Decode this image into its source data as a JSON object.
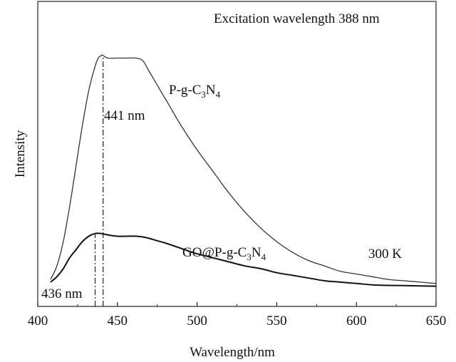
{
  "chart_data": {
    "type": "line",
    "title": "",
    "xlabel": "Wavelength/nm",
    "ylabel": "Intensity",
    "xlim": [
      400,
      650
    ],
    "ylim": [
      0,
      1
    ],
    "x_ticks": [
      "400",
      "450",
      "500",
      "550",
      "600",
      "650"
    ],
    "y_ticks_shown": false,
    "grid": false,
    "series": [
      {
        "name": "P-g-C3N4",
        "label_base": "P-g-C",
        "label_sub1": "3",
        "label_mid": "N",
        "label_sub2": "4",
        "peak_label": "441 nm",
        "peak_x": 441,
        "x": [
          408,
          412,
          416,
          420,
          424,
          428,
          432,
          436,
          438,
          440,
          441,
          444,
          450,
          456,
          462,
          466,
          470,
          476,
          482,
          490,
          500,
          510,
          520,
          530,
          540,
          550,
          560,
          570,
          580,
          590,
          600,
          610,
          620,
          630,
          640,
          650
        ],
        "y": [
          0.1,
          0.15,
          0.24,
          0.37,
          0.52,
          0.67,
          0.8,
          0.89,
          0.92,
          0.93,
          0.93,
          0.92,
          0.92,
          0.92,
          0.92,
          0.91,
          0.87,
          0.81,
          0.75,
          0.67,
          0.58,
          0.5,
          0.42,
          0.35,
          0.29,
          0.24,
          0.2,
          0.17,
          0.15,
          0.13,
          0.12,
          0.11,
          0.1,
          0.095,
          0.09,
          0.085
        ]
      },
      {
        "name": "GO@P-g-C3N4",
        "label_base": "GO@P-g-C",
        "label_sub1": "3",
        "label_mid": "N",
        "label_sub2": "4",
        "peak_label": "436 nm",
        "peak_x": 436,
        "x": [
          408,
          412,
          416,
          420,
          424,
          428,
          432,
          436,
          440,
          444,
          450,
          456,
          462,
          468,
          474,
          480,
          490,
          500,
          510,
          520,
          530,
          540,
          550,
          560,
          570,
          580,
          590,
          600,
          610,
          620,
          630,
          640,
          650
        ],
        "y": [
          0.09,
          0.11,
          0.14,
          0.18,
          0.21,
          0.24,
          0.26,
          0.27,
          0.27,
          0.265,
          0.26,
          0.26,
          0.26,
          0.255,
          0.245,
          0.235,
          0.215,
          0.195,
          0.18,
          0.165,
          0.15,
          0.14,
          0.125,
          0.115,
          0.105,
          0.095,
          0.09,
          0.085,
          0.08,
          0.078,
          0.077,
          0.076,
          0.075
        ]
      }
    ],
    "annotations": {
      "excitation": "Excitation wavelength 388 nm",
      "temperature": "300 K"
    }
  }
}
